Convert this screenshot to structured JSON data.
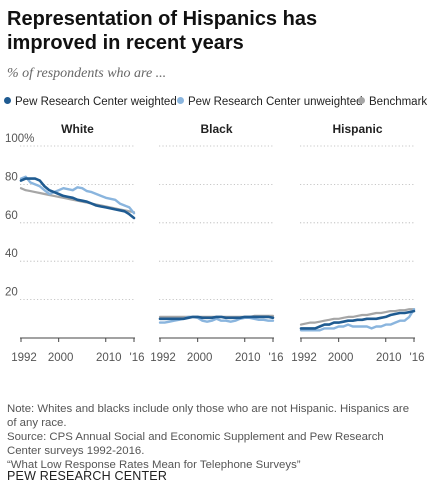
{
  "title": "Representation of Hispanics has improved in recent years",
  "subtitle": "% of respondents who are ...",
  "legend": [
    {
      "label": "Pew Research Center weighted",
      "color": "#1f5b91"
    },
    {
      "label": "Pew Research Center unweighted",
      "color": "#8ab5de"
    },
    {
      "label": "Benchmark",
      "color": "#a6a6a6"
    }
  ],
  "chart_data": [
    {
      "type": "line",
      "title": "White",
      "ylim": [
        0,
        100
      ],
      "yticks": [
        20,
        40,
        60,
        80,
        100
      ],
      "ytick_labels": [
        "20",
        "40",
        "60",
        "80",
        "100%"
      ],
      "xlim": [
        1992,
        2016
      ],
      "xtick_labels": [
        "1992",
        "2000",
        "2010",
        "'16"
      ],
      "x": [
        1992,
        1993,
        1994,
        1995,
        1996,
        1997,
        1998,
        1999,
        2000,
        2001,
        2002,
        2003,
        2004,
        2005,
        2006,
        2007,
        2008,
        2009,
        2010,
        2011,
        2012,
        2013,
        2014,
        2015,
        2016
      ],
      "series": [
        {
          "name": "Benchmark",
          "values": [
            78,
            77,
            76.5,
            76,
            75.5,
            75,
            74.5,
            74,
            73.5,
            73,
            72.5,
            72,
            71.5,
            71,
            70.5,
            70,
            69.5,
            69,
            68.5,
            68,
            67.5,
            67,
            66.5,
            66,
            65.5
          ]
        },
        {
          "name": "Pew Research Center unweighted",
          "values": [
            83,
            84,
            81,
            80,
            79,
            77,
            75,
            76,
            77,
            78,
            77.5,
            77,
            78.5,
            78,
            76.5,
            76,
            75,
            74,
            73,
            72.5,
            72,
            70,
            69,
            68,
            65
          ]
        },
        {
          "name": "Pew Research Center weighted",
          "values": [
            82,
            83,
            83,
            83,
            82,
            79,
            77,
            76,
            75,
            74,
            73.5,
            73,
            72,
            71.5,
            71,
            70,
            69,
            68.5,
            68,
            67.5,
            67,
            66.5,
            66,
            64.5,
            62.5
          ]
        }
      ]
    },
    {
      "type": "line",
      "title": "Black",
      "ylim": [
        0,
        100
      ],
      "xlim": [
        1992,
        2016
      ],
      "xtick_labels": [
        "1992",
        "2000",
        "2010",
        "'16"
      ],
      "x": [
        1992,
        1993,
        1994,
        1995,
        1996,
        1997,
        1998,
        1999,
        2000,
        2001,
        2002,
        2003,
        2004,
        2005,
        2006,
        2007,
        2008,
        2009,
        2010,
        2011,
        2012,
        2013,
        2014,
        2015,
        2016
      ],
      "series": [
        {
          "name": "Benchmark",
          "values": [
            11,
            11,
            11,
            11,
            11,
            11,
            11,
            11,
            11,
            11,
            11,
            11,
            11,
            11,
            11,
            11,
            11,
            11,
            11,
            11,
            11.5,
            11.5,
            11.5,
            11.5,
            11.5
          ]
        },
        {
          "name": "Pew Research Center unweighted",
          "values": [
            8,
            8,
            8.5,
            9,
            9.5,
            10,
            11,
            11,
            10.5,
            9,
            8.5,
            9,
            10,
            9,
            9,
            8.5,
            9,
            10,
            10.5,
            10.5,
            10,
            9.5,
            9.5,
            9,
            9
          ]
        },
        {
          "name": "Pew Research Center weighted",
          "values": [
            10,
            10,
            10,
            10,
            10,
            10,
            10.5,
            11,
            11,
            10.5,
            10.5,
            10.5,
            11,
            11,
            10.5,
            10.5,
            10.5,
            10.5,
            11,
            11,
            11,
            11,
            11,
            11,
            10.5
          ]
        }
      ]
    },
    {
      "type": "line",
      "title": "Hispanic",
      "ylim": [
        0,
        100
      ],
      "xlim": [
        1992,
        2016
      ],
      "xtick_labels": [
        "1992",
        "2000",
        "2010",
        "'16"
      ],
      "x": [
        1992,
        1993,
        1994,
        1995,
        1996,
        1997,
        1998,
        1999,
        2000,
        2001,
        2002,
        2003,
        2004,
        2005,
        2006,
        2007,
        2008,
        2009,
        2010,
        2011,
        2012,
        2013,
        2014,
        2015,
        2016
      ],
      "series": [
        {
          "name": "Benchmark",
          "values": [
            7,
            7.5,
            8,
            8,
            8.5,
            9,
            9.5,
            10,
            10,
            10.5,
            11,
            11,
            11.5,
            12,
            12,
            12.5,
            13,
            13,
            13.5,
            14,
            14,
            14.5,
            14.5,
            15,
            15
          ]
        },
        {
          "name": "Pew Research Center unweighted",
          "values": [
            4,
            4,
            4,
            4,
            4,
            5,
            5,
            5,
            6,
            6,
            7,
            6,
            6,
            6,
            6,
            5,
            6,
            6,
            7,
            7,
            8,
            9,
            9,
            11,
            15
          ]
        },
        {
          "name": "Pew Research Center weighted",
          "values": [
            5,
            5,
            5,
            5,
            6,
            7,
            7,
            8,
            8,
            8.5,
            9,
            9,
            9.5,
            9.5,
            10,
            10,
            10,
            10.5,
            11,
            12,
            12.5,
            13,
            13,
            13.5,
            14
          ]
        }
      ]
    }
  ],
  "note": "Note: Whites and blacks include only those who are not Hispanic. Hispanics are of any race.",
  "source": "Source: CPS Annual Social and Economic Supplement and Pew Research Center surveys 1992-2016.",
  "report": "“What Low Response Rates Mean for Telephone Surveys”",
  "footer": "PEW RESEARCH CENTER"
}
